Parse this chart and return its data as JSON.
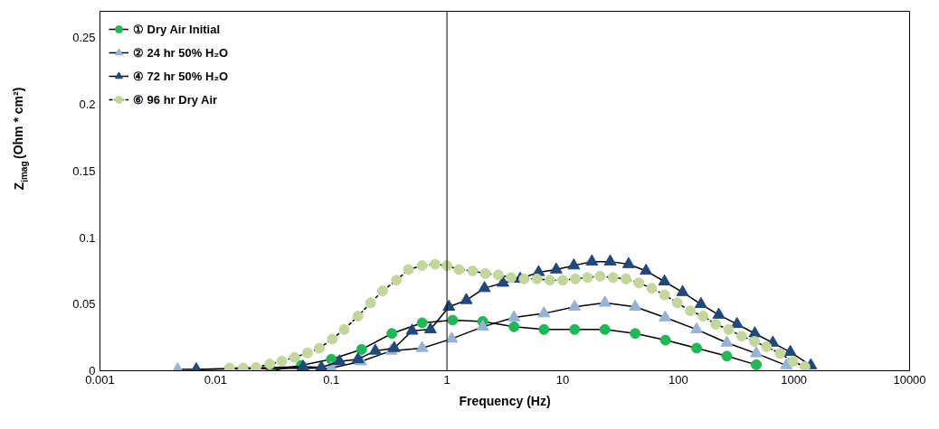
{
  "chart_data": {
    "type": "line",
    "xlabel": "Frequency (Hz)",
    "ylabel": "Z$_{imag}$ (Ohm * cm²)",
    "log": "x",
    "xlim": [
      0.001,
      10000
    ],
    "xticks": [
      0.001,
      0.01,
      0.1,
      1,
      10,
      100,
      1000,
      10000
    ],
    "ylim": [
      0,
      0.27
    ],
    "yticks": [
      0,
      0.05,
      {
        "value": 0.1,
        "label": "0.1"
      },
      0.15,
      {
        "value": 0.2,
        "label": "0.2"
      },
      0.25
    ],
    "grid": false,
    "legend": "top left",
    "marker": "circle",
    "line_style": "solid",
    "ref_lines": [
      {
        "axis": "x",
        "value": 1,
        "label": null,
        "color": "#000000"
      }
    ],
    "series": [
      {
        "name": "① Dry Air Initial",
        "color": "#1db954",
        "marker": "circle",
        "x": [
          0.03,
          0.055,
          0.1,
          0.183,
          0.334,
          0.61,
          1.12,
          2.04,
          3.8,
          6.9,
          12.7,
          23.2,
          42.4,
          77.4,
          144,
          263,
          473
        ],
        "values": [
          0.0,
          0.004,
          0.0086,
          0.016,
          0.028,
          0.036,
          0.038,
          0.037,
          0.033,
          0.031,
          0.031,
          0.031,
          0.028,
          0.023,
          0.017,
          0.011,
          0.0045
        ]
      },
      {
        "name": "② 24 hr 50% H₂O",
        "color": "#95b3d7",
        "marker": "triangle",
        "x": [
          0.0047,
          0.1,
          0.18,
          0.33,
          0.61,
          1.1,
          2.04,
          3.8,
          6.9,
          12.7,
          23.2,
          42.4,
          77,
          144,
          263,
          473,
          860
        ],
        "values": [
          0.001,
          0.002,
          0.007,
          0.015,
          0.017,
          0.024,
          0.033,
          0.04,
          0.043,
          0.048,
          0.051,
          0.048,
          0.04,
          0.031,
          0.021,
          0.013,
          0.004
        ]
      },
      {
        "name": "④ 72 hr 50% H₂O",
        "color": "#1f497d",
        "marker": "triangle",
        "x": [
          0.0068,
          0.057,
          0.082,
          0.118,
          0.17,
          0.24,
          0.35,
          0.5,
          0.72,
          1.04,
          1.47,
          2.11,
          3.05,
          4.3,
          6.2,
          8.8,
          12.5,
          17.9,
          25.8,
          37.2,
          52.6,
          76,
          109,
          157,
          224,
          322,
          459,
          657,
          930,
          1400
        ],
        "values": [
          0.001,
          0.003,
          0.0025,
          0.007,
          0.0086,
          0.015,
          0.017,
          0.03,
          0.031,
          0.048,
          0.053,
          0.062,
          0.066,
          0.069,
          0.074,
          0.076,
          0.079,
          0.082,
          0.082,
          0.08,
          0.075,
          0.067,
          0.059,
          0.05,
          0.042,
          0.035,
          0.028,
          0.021,
          0.014,
          0.004
        ]
      },
      {
        "name": "⑥ 96 hr Dry Air",
        "color": "#c4d79b",
        "marker": "circle",
        "line_style": "dashed",
        "x": [
          0.0132,
          0.0173,
          0.0223,
          0.0294,
          0.0373,
          0.0482,
          0.0622,
          0.0789,
          0.102,
          0.129,
          0.17,
          0.219,
          0.278,
          0.366,
          0.464,
          0.61,
          0.79,
          1.0,
          1.27,
          1.67,
          2.15,
          2.78,
          3.59,
          4.64,
          6.0,
          7.74,
          10,
          12.9,
          16.4,
          21.1,
          27.3,
          35.3,
          45.6,
          58.9,
          76,
          98,
          127,
          164,
          211,
          273,
          353,
          456,
          578,
          760,
          982,
          1245
        ],
        "values": [
          0.002,
          0.002,
          0.0024,
          0.005,
          0.0072,
          0.01,
          0.0134,
          0.0169,
          0.0238,
          0.031,
          0.041,
          0.051,
          0.06,
          0.068,
          0.076,
          0.079,
          0.08,
          0.079,
          0.076,
          0.075,
          0.073,
          0.072,
          0.07,
          0.069,
          0.069,
          0.068,
          0.068,
          0.069,
          0.07,
          0.071,
          0.07,
          0.069,
          0.066,
          0.062,
          0.057,
          0.051,
          0.045,
          0.041,
          0.035,
          0.031,
          0.026,
          0.022,
          0.018,
          0.013,
          0.007,
          0.003
        ]
      }
    ]
  }
}
